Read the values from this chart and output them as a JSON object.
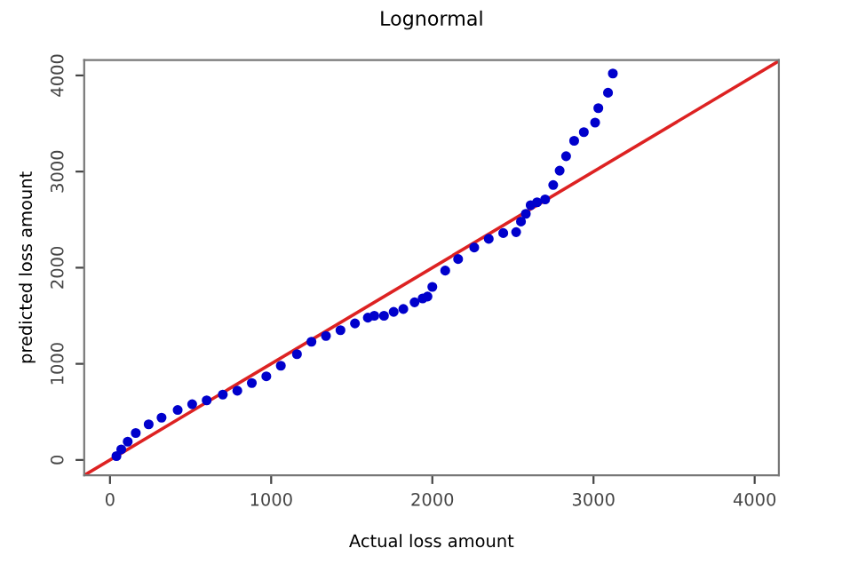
{
  "chart_data": {
    "type": "scatter",
    "title": "Lognormal",
    "xlabel": "Actual loss amount",
    "ylabel": "predicted loss amount",
    "xlim": [
      -160,
      4150
    ],
    "ylim": [
      -160,
      4160
    ],
    "xticks": [
      0,
      1000,
      2000,
      3000,
      4000
    ],
    "yticks": [
      0,
      1000,
      2000,
      3000,
      4000
    ],
    "grid": false,
    "series": [
      {
        "color": "#0000cc",
        "marker": "circle",
        "x": [
          40,
          70,
          110,
          160,
          240,
          320,
          420,
          510,
          600,
          700,
          790,
          880,
          970,
          1060,
          1160,
          1250,
          1340,
          1430,
          1520,
          1600,
          1640,
          1700,
          1760,
          1820,
          1890,
          1940,
          1970,
          2000,
          2080,
          2160,
          2260,
          2350,
          2440,
          2520,
          2550,
          2580,
          2610,
          2650,
          2700,
          2750,
          2790,
          2830,
          2880,
          2940,
          3010,
          3030,
          3090,
          3120
        ],
        "values": [
          40,
          110,
          190,
          280,
          370,
          440,
          520,
          580,
          620,
          680,
          720,
          800,
          870,
          980,
          1100,
          1230,
          1290,
          1350,
          1420,
          1480,
          1500,
          1500,
          1540,
          1570,
          1640,
          1680,
          1700,
          1800,
          1970,
          2090,
          2210,
          2300,
          2360,
          2370,
          2480,
          2560,
          2650,
          2680,
          2710,
          2860,
          3010,
          3160,
          3320,
          3410,
          3510,
          3660,
          3820,
          4020
        ]
      },
      {
        "type": "line",
        "color": "#dd2222",
        "x": [
          -160,
          4150
        ],
        "values": [
          -160,
          4150
        ]
      }
    ]
  }
}
